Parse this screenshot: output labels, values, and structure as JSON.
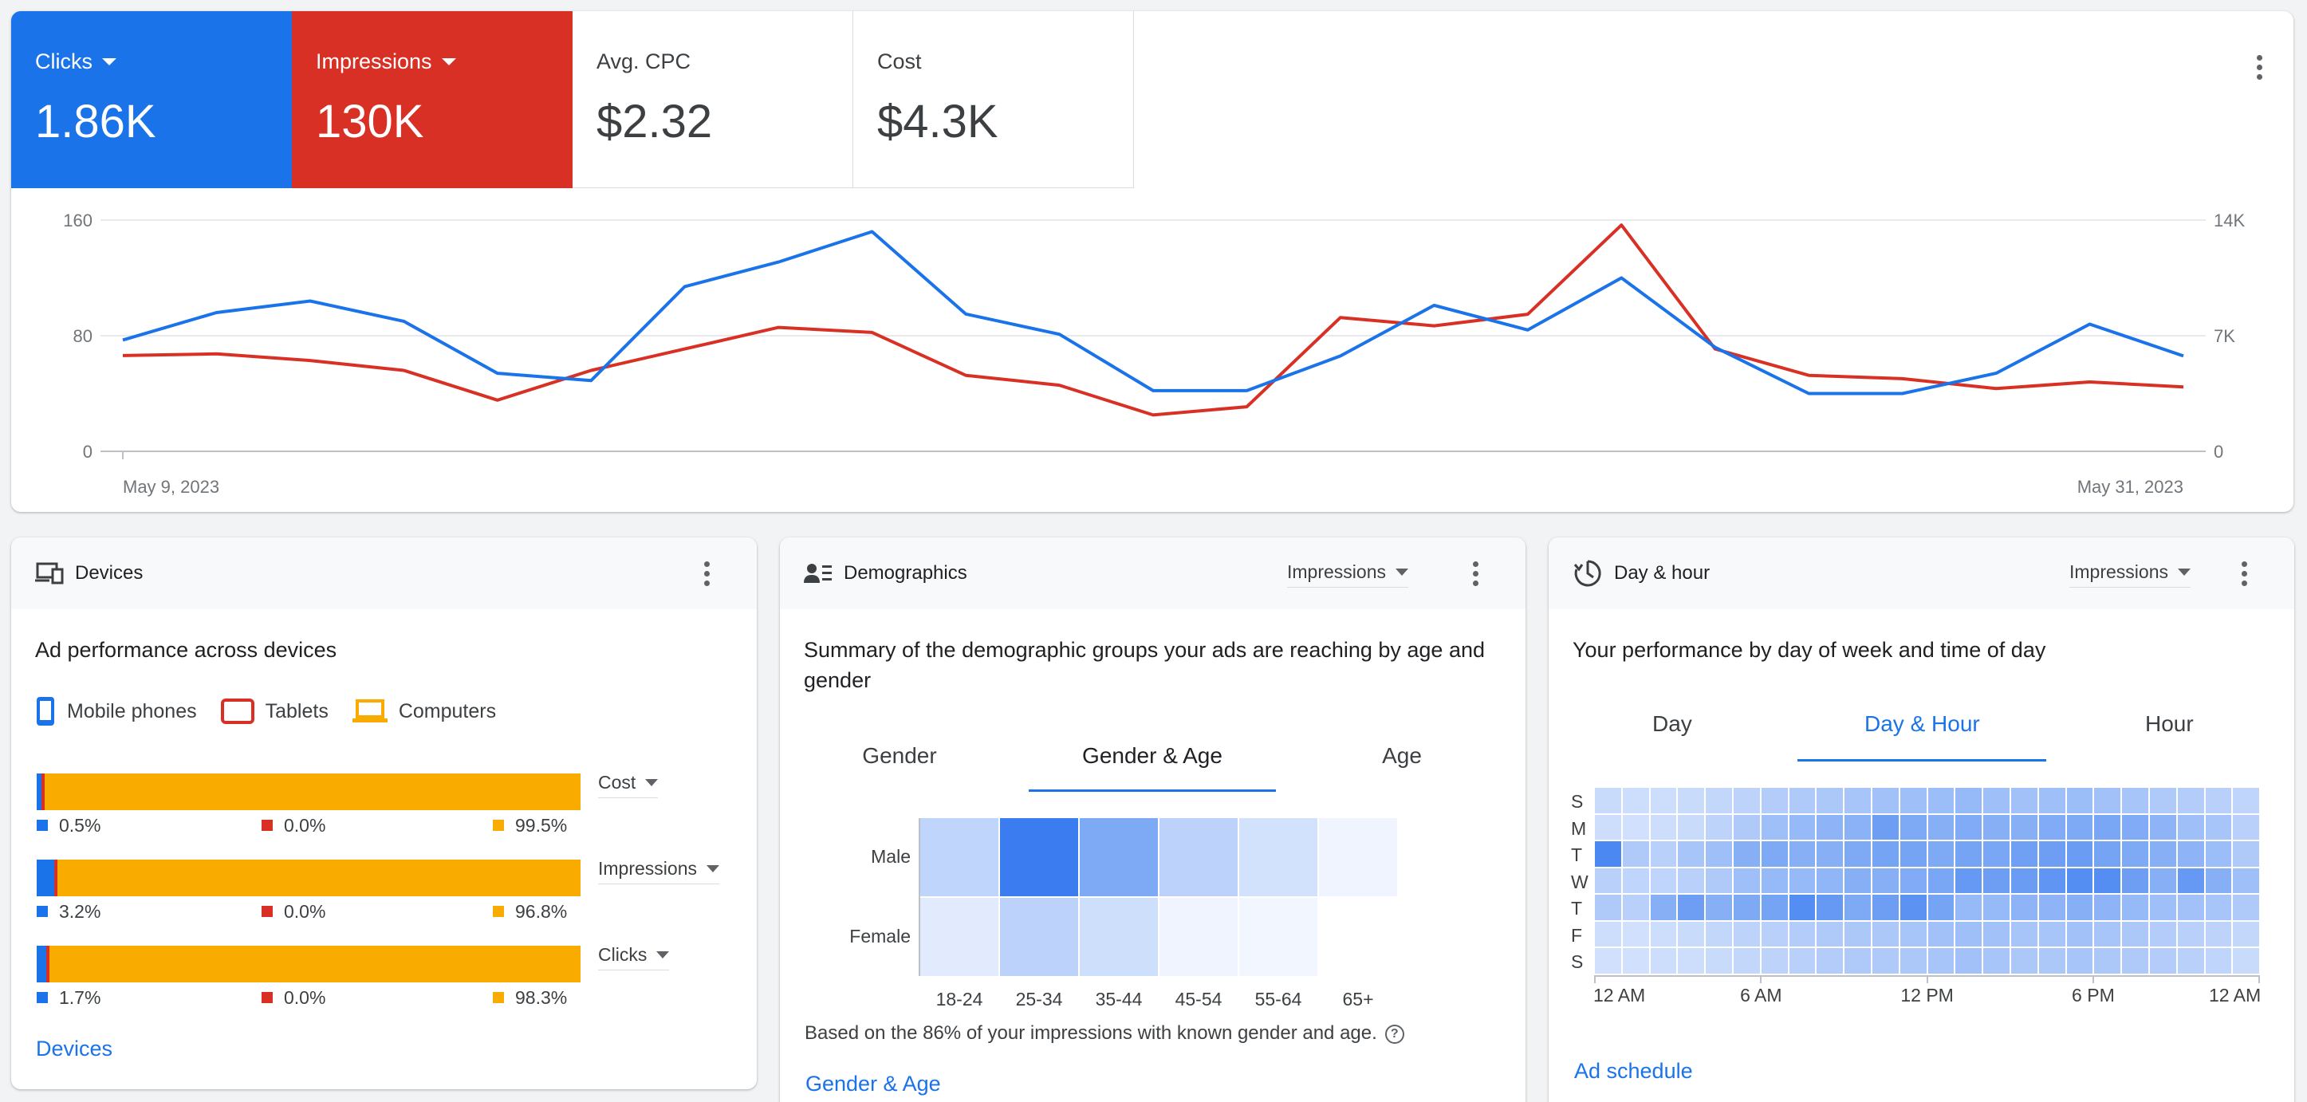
{
  "overview": {
    "metrics": [
      {
        "label": "Clicks",
        "value": "1.86K",
        "color": "#1a73e8",
        "selected": true
      },
      {
        "label": "Impressions",
        "value": "130K",
        "color": "#d93025",
        "selected": true
      },
      {
        "label": "Avg. CPC",
        "value": "$2.32",
        "selected": false
      },
      {
        "label": "Cost",
        "value": "$4.3K",
        "selected": false
      }
    ],
    "menu_icon": "more-vert-icon"
  },
  "chart_data": {
    "type": "line",
    "x": [
      "May 9, 2023",
      "May 10, 2023",
      "May 11, 2023",
      "May 12, 2023",
      "May 13, 2023",
      "May 14, 2023",
      "May 15, 2023",
      "May 16, 2023",
      "May 17, 2023",
      "May 18, 2023",
      "May 19, 2023",
      "May 20, 2023",
      "May 21, 2023",
      "May 22, 2023",
      "May 23, 2023",
      "May 24, 2023",
      "May 25, 2023",
      "May 26, 2023",
      "May 27, 2023",
      "May 28, 2023",
      "May 29, 2023",
      "May 30, 2023",
      "May 31, 2023"
    ],
    "x_tick_labels": [
      "May 9, 2023",
      "May 31, 2023"
    ],
    "series": [
      {
        "name": "Clicks",
        "axis": "left",
        "color": "#1a73e8",
        "values": [
          77,
          96,
          104,
          90,
          54,
          49,
          114,
          131,
          152,
          95,
          81,
          42,
          42,
          66,
          101,
          84,
          120,
          72,
          40,
          40,
          54,
          88,
          66
        ]
      },
      {
        "name": "Impressions",
        "axis": "right",
        "color": "#d93025",
        "values": [
          5800,
          5900,
          5500,
          4900,
          3100,
          4900,
          6200,
          7500,
          7200,
          4600,
          4000,
          2200,
          2700,
          8100,
          7600,
          8300,
          13700,
          6200,
          4600,
          4400,
          3800,
          4200,
          3900
        ]
      }
    ],
    "y_left": {
      "ticks": [
        "160",
        "80",
        "0"
      ],
      "ylim": [
        0,
        160
      ]
    },
    "y_right": {
      "ticks": [
        "14K",
        "7K",
        "0"
      ],
      "ylim": [
        0,
        14000
      ]
    },
    "grid": true
  },
  "devices": {
    "title": "Devices",
    "icon": "devices-icon",
    "heading": "Ad performance across devices",
    "legend": [
      {
        "label": "Mobile phones",
        "color": "#1a73e8",
        "icon": "phone-icon"
      },
      {
        "label": "Tablets",
        "color": "#d93025",
        "icon": "tablet-icon"
      },
      {
        "label": "Computers",
        "color": "#f9ab00",
        "icon": "laptop-icon"
      }
    ],
    "rows": [
      {
        "metric": "Cost",
        "shares": [
          0.5,
          0.0,
          99.5
        ],
        "labels": [
          "0.5%",
          "0.0%",
          "99.5%"
        ]
      },
      {
        "metric": "Impressions",
        "shares": [
          3.2,
          0.0,
          96.8
        ],
        "labels": [
          "3.2%",
          "0.0%",
          "96.8%"
        ]
      },
      {
        "metric": "Clicks",
        "shares": [
          1.7,
          0.0,
          98.3
        ],
        "labels": [
          "1.7%",
          "0.0%",
          "98.3%"
        ]
      }
    ],
    "link": "Devices"
  },
  "demographics": {
    "title": "Demographics",
    "icon": "demographics-icon",
    "metric_select": "Impressions",
    "heading": "Summary of the demographic groups your ads are reaching by age and gender",
    "tabs": [
      "Gender",
      "Gender & Age",
      "Age"
    ],
    "active_tab": 1,
    "rows": [
      "Male",
      "Female"
    ],
    "cols": [
      "18-24",
      "25-34",
      "35-44",
      "45-54",
      "55-64",
      "65+"
    ],
    "intensity": [
      [
        0.3,
        1.0,
        0.65,
        0.32,
        0.2,
        0.05
      ],
      [
        0.12,
        0.32,
        0.22,
        0.05,
        0.03,
        0.0
      ]
    ],
    "footnote": "Based on the 86% of your impressions with known gender and age.",
    "help_icon": "help-icon",
    "link": "Gender & Age"
  },
  "dayhour": {
    "title": "Day & hour",
    "icon": "schedule-icon",
    "metric_select": "Impressions",
    "heading": "Your performance by day of week and time of day",
    "tabs": [
      "Day",
      "Day & Hour",
      "Hour"
    ],
    "active_tab": 1,
    "days": [
      "S",
      "M",
      "T",
      "W",
      "T",
      "F",
      "S"
    ],
    "hours": [
      "12 AM",
      "6 AM",
      "12 PM",
      "6 PM",
      "12 AM"
    ],
    "intensity": [
      [
        0.15,
        0.12,
        0.12,
        0.15,
        0.18,
        0.22,
        0.28,
        0.3,
        0.32,
        0.35,
        0.38,
        0.4,
        0.42,
        0.45,
        0.4,
        0.38,
        0.4,
        0.42,
        0.38,
        0.35,
        0.3,
        0.28,
        0.25,
        0.2
      ],
      [
        0.12,
        0.1,
        0.12,
        0.15,
        0.22,
        0.3,
        0.4,
        0.45,
        0.5,
        0.52,
        0.7,
        0.6,
        0.55,
        0.58,
        0.55,
        0.55,
        0.58,
        0.6,
        0.62,
        0.58,
        0.5,
        0.4,
        0.35,
        0.25
      ],
      [
        0.9,
        0.3,
        0.25,
        0.35,
        0.4,
        0.55,
        0.6,
        0.55,
        0.55,
        0.6,
        0.65,
        0.65,
        0.6,
        0.65,
        0.62,
        0.68,
        0.7,
        0.72,
        0.65,
        0.6,
        0.55,
        0.5,
        0.42,
        0.3
      ],
      [
        0.25,
        0.2,
        0.2,
        0.25,
        0.3,
        0.4,
        0.45,
        0.45,
        0.48,
        0.55,
        0.55,
        0.58,
        0.62,
        0.75,
        0.7,
        0.72,
        0.78,
        0.85,
        0.85,
        0.7,
        0.55,
        0.75,
        0.55,
        0.4
      ],
      [
        0.3,
        0.25,
        0.55,
        0.7,
        0.55,
        0.6,
        0.65,
        0.85,
        0.75,
        0.6,
        0.7,
        0.8,
        0.65,
        0.45,
        0.45,
        0.5,
        0.5,
        0.55,
        0.5,
        0.45,
        0.4,
        0.38,
        0.35,
        0.3
      ],
      [
        0.12,
        0.1,
        0.12,
        0.15,
        0.18,
        0.22,
        0.25,
        0.28,
        0.3,
        0.32,
        0.32,
        0.35,
        0.38,
        0.4,
        0.38,
        0.35,
        0.35,
        0.38,
        0.35,
        0.32,
        0.28,
        0.25,
        0.22,
        0.18
      ],
      [
        0.1,
        0.1,
        0.12,
        0.12,
        0.15,
        0.18,
        0.22,
        0.25,
        0.28,
        0.3,
        0.3,
        0.32,
        0.35,
        0.38,
        0.35,
        0.32,
        0.32,
        0.35,
        0.32,
        0.3,
        0.28,
        0.25,
        0.2,
        0.15
      ]
    ],
    "link": "Ad schedule"
  }
}
